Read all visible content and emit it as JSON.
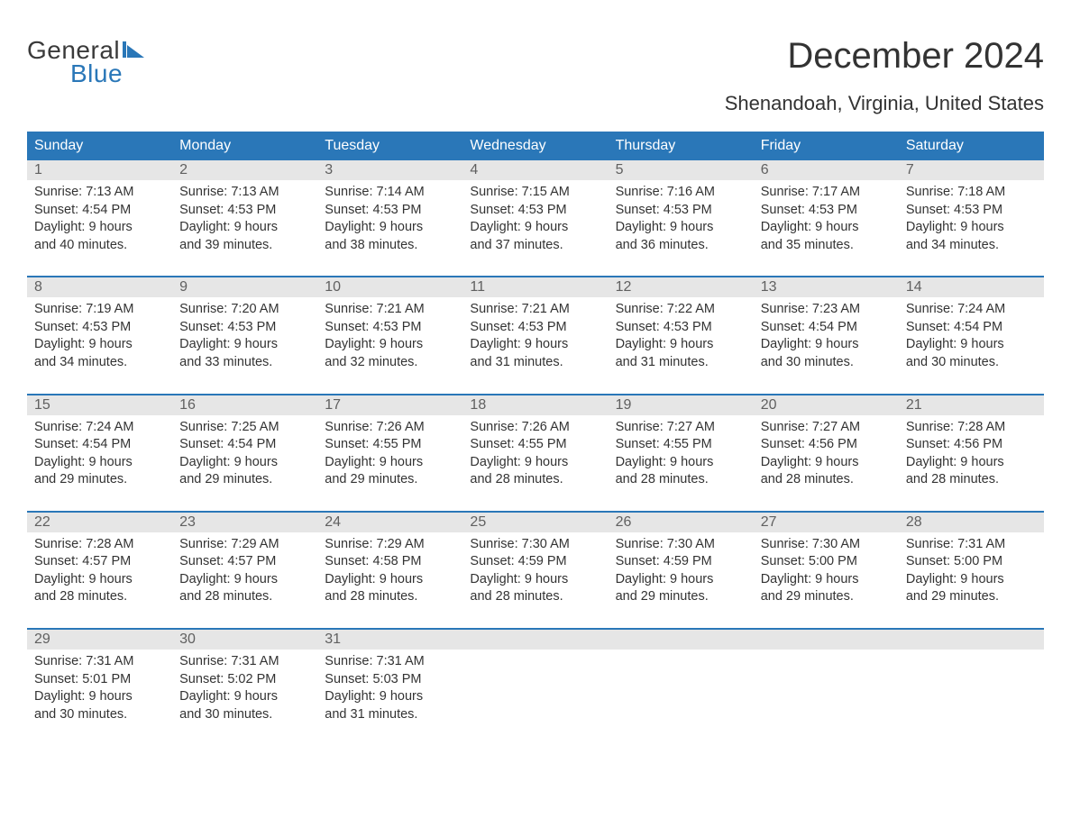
{
  "logo": {
    "word1": "General",
    "word2": "Blue"
  },
  "colors": {
    "brand_blue": "#2a77b8",
    "header_bg": "#2a77b8",
    "header_text": "#ffffff",
    "daynum_bg": "#e6e6e6",
    "daynum_text": "#606060",
    "body_text": "#333333",
    "page_bg": "#ffffff"
  },
  "title": "December 2024",
  "subtitle": "Shenandoah, Virginia, United States",
  "day_headers": [
    "Sunday",
    "Monday",
    "Tuesday",
    "Wednesday",
    "Thursday",
    "Friday",
    "Saturday"
  ],
  "weeks": [
    [
      {
        "n": "1",
        "sunrise": "7:13 AM",
        "sunset": "4:54 PM",
        "dl1": "Daylight: 9 hours",
        "dl2": "and 40 minutes."
      },
      {
        "n": "2",
        "sunrise": "7:13 AM",
        "sunset": "4:53 PM",
        "dl1": "Daylight: 9 hours",
        "dl2": "and 39 minutes."
      },
      {
        "n": "3",
        "sunrise": "7:14 AM",
        "sunset": "4:53 PM",
        "dl1": "Daylight: 9 hours",
        "dl2": "and 38 minutes."
      },
      {
        "n": "4",
        "sunrise": "7:15 AM",
        "sunset": "4:53 PM",
        "dl1": "Daylight: 9 hours",
        "dl2": "and 37 minutes."
      },
      {
        "n": "5",
        "sunrise": "7:16 AM",
        "sunset": "4:53 PM",
        "dl1": "Daylight: 9 hours",
        "dl2": "and 36 minutes."
      },
      {
        "n": "6",
        "sunrise": "7:17 AM",
        "sunset": "4:53 PM",
        "dl1": "Daylight: 9 hours",
        "dl2": "and 35 minutes."
      },
      {
        "n": "7",
        "sunrise": "7:18 AM",
        "sunset": "4:53 PM",
        "dl1": "Daylight: 9 hours",
        "dl2": "and 34 minutes."
      }
    ],
    [
      {
        "n": "8",
        "sunrise": "7:19 AM",
        "sunset": "4:53 PM",
        "dl1": "Daylight: 9 hours",
        "dl2": "and 34 minutes."
      },
      {
        "n": "9",
        "sunrise": "7:20 AM",
        "sunset": "4:53 PM",
        "dl1": "Daylight: 9 hours",
        "dl2": "and 33 minutes."
      },
      {
        "n": "10",
        "sunrise": "7:21 AM",
        "sunset": "4:53 PM",
        "dl1": "Daylight: 9 hours",
        "dl2": "and 32 minutes."
      },
      {
        "n": "11",
        "sunrise": "7:21 AM",
        "sunset": "4:53 PM",
        "dl1": "Daylight: 9 hours",
        "dl2": "and 31 minutes."
      },
      {
        "n": "12",
        "sunrise": "7:22 AM",
        "sunset": "4:53 PM",
        "dl1": "Daylight: 9 hours",
        "dl2": "and 31 minutes."
      },
      {
        "n": "13",
        "sunrise": "7:23 AM",
        "sunset": "4:54 PM",
        "dl1": "Daylight: 9 hours",
        "dl2": "and 30 minutes."
      },
      {
        "n": "14",
        "sunrise": "7:24 AM",
        "sunset": "4:54 PM",
        "dl1": "Daylight: 9 hours",
        "dl2": "and 30 minutes."
      }
    ],
    [
      {
        "n": "15",
        "sunrise": "7:24 AM",
        "sunset": "4:54 PM",
        "dl1": "Daylight: 9 hours",
        "dl2": "and 29 minutes."
      },
      {
        "n": "16",
        "sunrise": "7:25 AM",
        "sunset": "4:54 PM",
        "dl1": "Daylight: 9 hours",
        "dl2": "and 29 minutes."
      },
      {
        "n": "17",
        "sunrise": "7:26 AM",
        "sunset": "4:55 PM",
        "dl1": "Daylight: 9 hours",
        "dl2": "and 29 minutes."
      },
      {
        "n": "18",
        "sunrise": "7:26 AM",
        "sunset": "4:55 PM",
        "dl1": "Daylight: 9 hours",
        "dl2": "and 28 minutes."
      },
      {
        "n": "19",
        "sunrise": "7:27 AM",
        "sunset": "4:55 PM",
        "dl1": "Daylight: 9 hours",
        "dl2": "and 28 minutes."
      },
      {
        "n": "20",
        "sunrise": "7:27 AM",
        "sunset": "4:56 PM",
        "dl1": "Daylight: 9 hours",
        "dl2": "and 28 minutes."
      },
      {
        "n": "21",
        "sunrise": "7:28 AM",
        "sunset": "4:56 PM",
        "dl1": "Daylight: 9 hours",
        "dl2": "and 28 minutes."
      }
    ],
    [
      {
        "n": "22",
        "sunrise": "7:28 AM",
        "sunset": "4:57 PM",
        "dl1": "Daylight: 9 hours",
        "dl2": "and 28 minutes."
      },
      {
        "n": "23",
        "sunrise": "7:29 AM",
        "sunset": "4:57 PM",
        "dl1": "Daylight: 9 hours",
        "dl2": "and 28 minutes."
      },
      {
        "n": "24",
        "sunrise": "7:29 AM",
        "sunset": "4:58 PM",
        "dl1": "Daylight: 9 hours",
        "dl2": "and 28 minutes."
      },
      {
        "n": "25",
        "sunrise": "7:30 AM",
        "sunset": "4:59 PM",
        "dl1": "Daylight: 9 hours",
        "dl2": "and 28 minutes."
      },
      {
        "n": "26",
        "sunrise": "7:30 AM",
        "sunset": "4:59 PM",
        "dl1": "Daylight: 9 hours",
        "dl2": "and 29 minutes."
      },
      {
        "n": "27",
        "sunrise": "7:30 AM",
        "sunset": "5:00 PM",
        "dl1": "Daylight: 9 hours",
        "dl2": "and 29 minutes."
      },
      {
        "n": "28",
        "sunrise": "7:31 AM",
        "sunset": "5:00 PM",
        "dl1": "Daylight: 9 hours",
        "dl2": "and 29 minutes."
      }
    ],
    [
      {
        "n": "29",
        "sunrise": "7:31 AM",
        "sunset": "5:01 PM",
        "dl1": "Daylight: 9 hours",
        "dl2": "and 30 minutes."
      },
      {
        "n": "30",
        "sunrise": "7:31 AM",
        "sunset": "5:02 PM",
        "dl1": "Daylight: 9 hours",
        "dl2": "and 30 minutes."
      },
      {
        "n": "31",
        "sunrise": "7:31 AM",
        "sunset": "5:03 PM",
        "dl1": "Daylight: 9 hours",
        "dl2": "and 31 minutes."
      },
      null,
      null,
      null,
      null
    ]
  ],
  "labels": {
    "sunrise_prefix": "Sunrise: ",
    "sunset_prefix": "Sunset: "
  }
}
